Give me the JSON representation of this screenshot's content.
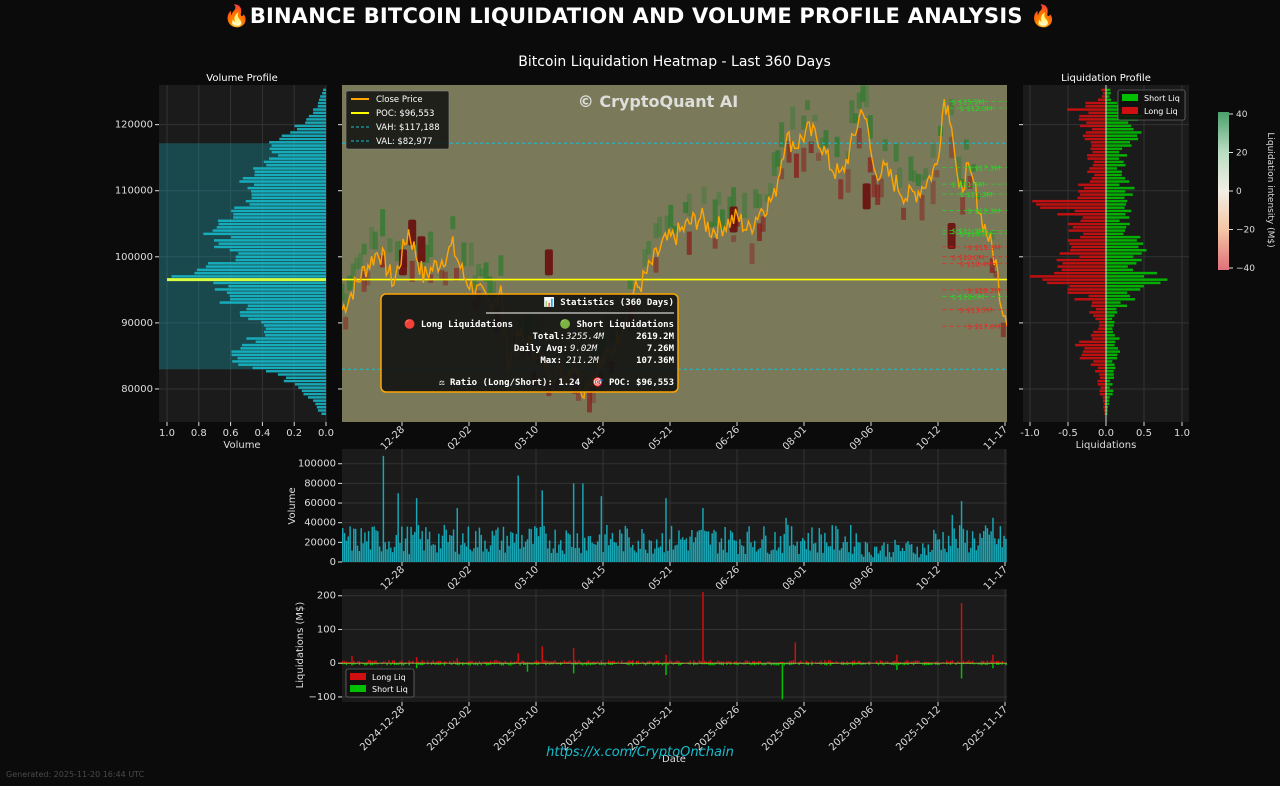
{
  "page": {
    "title": "🔥BINANCE BITCOIN LIQUIDATION AND VOLUME PROFILE ANALYSIS 🔥",
    "subtitle": "Bitcoin Liquidation Heatmap - Last 360 Days",
    "footer_url": "https://x.com/CryptoOnchain",
    "generated": "Generated: 2025-11-20 16:44 UTC",
    "watermark": "© CryptoQuant AI"
  },
  "colors": {
    "background": "#0b0b0b",
    "panel": "#1b1b1b",
    "heatmap_bg": "#7a7a5a",
    "price": "#ffa500",
    "poc": "#ffff00",
    "value_area": "#17becf",
    "volume_bar": "#17becf",
    "short_liq": "#00c000",
    "long_liq": "#d01010"
  },
  "chart_data": [
    {
      "type": "line",
      "name": "heatmap",
      "title": "Bitcoin Liquidation Heatmap - Last 360 Days",
      "dates": [
        "2024-12-28",
        "2025-02-02",
        "2025-03-10",
        "2025-04-15",
        "2025-05-21",
        "2025-06-26",
        "2025-08-01",
        "2025-09-06",
        "2025-10-12",
        "2025-11-17"
      ],
      "ylim": [
        75000,
        126000
      ],
      "yticks": [
        "80000",
        "90000",
        "100000",
        "110000",
        "120000"
      ],
      "price_keypoints": [
        [
          0,
          92000
        ],
        [
          6,
          95000
        ],
        [
          12,
          98000
        ],
        [
          20,
          101000
        ],
        [
          28,
          96000
        ],
        [
          36,
          104000
        ],
        [
          44,
          97000
        ],
        [
          52,
          99000
        ],
        [
          60,
          101500
        ],
        [
          66,
          97000
        ],
        [
          72,
          95000
        ],
        [
          80,
          93000
        ],
        [
          86,
          95000
        ],
        [
          90,
          84000
        ],
        [
          96,
          88000
        ],
        [
          104,
          86000
        ],
        [
          112,
          83000
        ],
        [
          120,
          82000
        ],
        [
          126,
          84000
        ],
        [
          130,
          80000
        ],
        [
          138,
          83000
        ],
        [
          144,
          85000
        ],
        [
          150,
          88000
        ],
        [
          156,
          94000
        ],
        [
          162,
          96000
        ],
        [
          168,
          99000
        ],
        [
          174,
          102000
        ],
        [
          180,
          103000
        ],
        [
          188,
          105000
        ],
        [
          194,
          106000
        ],
        [
          200,
          104000
        ],
        [
          208,
          105000
        ],
        [
          214,
          106000
        ],
        [
          220,
          104000
        ],
        [
          226,
          107000
        ],
        [
          234,
          109000
        ],
        [
          240,
          118000
        ],
        [
          246,
          117000
        ],
        [
          252,
          119000
        ],
        [
          258,
          118000
        ],
        [
          264,
          114000
        ],
        [
          270,
          112000
        ],
        [
          276,
          117000
        ],
        [
          282,
          123000
        ],
        [
          288,
          113000
        ],
        [
          294,
          113000
        ],
        [
          300,
          111000
        ],
        [
          306,
          109000
        ],
        [
          312,
          110000
        ],
        [
          318,
          112000
        ],
        [
          322,
          114000
        ],
        [
          326,
          124000
        ],
        [
          330,
          121000
        ],
        [
          334,
          109000
        ],
        [
          338,
          113000
        ],
        [
          342,
          111000
        ],
        [
          346,
          106000
        ],
        [
          350,
          103000
        ],
        [
          354,
          99000
        ],
        [
          357,
          93000
        ],
        [
          360,
          91000
        ]
      ],
      "poc": 96553,
      "vah": 117188,
      "val": 82977,
      "legend": [
        "Close Price",
        "POC: $96,553",
        "VAH: $117,188",
        "VAL: $82,977"
      ],
      "right_labels": [
        {
          "text": "$ $15.9M",
          "price": 123500,
          "side": "short"
        },
        {
          "text": "$ $12.0M",
          "price": 122500,
          "side": "short"
        },
        {
          "text": "$ $17.3M",
          "price": 113500,
          "side": "short"
        },
        {
          "text": "$ $11.5M",
          "price": 111000,
          "side": "short"
        },
        {
          "text": "$ $11.3M",
          "price": 109500,
          "side": "short"
        },
        {
          "text": "$ $12.3M",
          "price": 107000,
          "side": "short"
        },
        {
          "text": "$ $11.3M",
          "price": 104000,
          "side": "short"
        },
        {
          "text": "$ $10.6M",
          "price": 103500,
          "side": "short"
        },
        {
          "text": "$ $15.3M",
          "price": 101500,
          "side": "long"
        },
        {
          "text": "$ $10.0M",
          "price": 100000,
          "side": "long"
        },
        {
          "text": "$ $10.4M",
          "price": 99000,
          "side": "long"
        },
        {
          "text": "$ $20.2M",
          "price": 95000,
          "side": "long"
        },
        {
          "text": "$ $10.0M",
          "price": 94000,
          "side": "short"
        },
        {
          "text": "$ $13.9M",
          "price": 92000,
          "side": "long"
        },
        {
          "text": "$ $17.6M",
          "price": 89500,
          "side": "long"
        }
      ],
      "statistics": {
        "title": "📊 Statistics (360 Days)",
        "long_title": "🔴 Long Liquidations",
        "short_title": "🟢 Short Liquidations",
        "total_label": "Total:",
        "long_total": "3255.4M",
        "short_total": "2619.2M",
        "daily_label": "Daily Avg:",
        "long_daily": "9.02M",
        "short_daily": "7.26M",
        "max_label": "Max:",
        "long_max": "211.2M",
        "short_max": "107.36M",
        "ratio": "⚖ Ratio (Long/Short): 1.24",
        "poc": "🎯 POC: $96,553"
      }
    },
    {
      "type": "bar",
      "name": "volume_profile",
      "title": "Volume Profile",
      "xlabel": "Volume",
      "xticks": [
        "1.0",
        "0.8",
        "0.6",
        "0.4",
        "0.2",
        "0.0"
      ],
      "price_range": [
        76000,
        125500
      ],
      "bucket_count": 100,
      "profile_keypoints": [
        [
          125,
          0.02
        ],
        [
          123,
          0.05
        ],
        [
          121,
          0.1
        ],
        [
          119,
          0.22
        ],
        [
          118,
          0.3
        ],
        [
          117,
          0.38
        ],
        [
          115,
          0.36
        ],
        [
          113,
          0.45
        ],
        [
          111,
          0.5
        ],
        [
          109,
          0.52
        ],
        [
          107,
          0.6
        ],
        [
          105,
          0.75
        ],
        [
          103,
          0.7
        ],
        [
          101,
          0.65
        ],
        [
          99,
          0.68
        ],
        [
          98,
          0.82
        ],
        [
          97,
          0.95
        ],
        [
          96.5,
          1.0
        ],
        [
          96,
          0.8
        ],
        [
          95,
          0.72
        ],
        [
          93,
          0.62
        ],
        [
          91,
          0.5
        ],
        [
          89,
          0.4
        ],
        [
          87,
          0.5
        ],
        [
          85,
          0.62
        ],
        [
          84,
          0.7
        ],
        [
          83,
          0.55
        ],
        [
          82,
          0.3
        ],
        [
          80,
          0.2
        ],
        [
          78,
          0.1
        ],
        [
          76,
          0.03
        ]
      ]
    },
    {
      "type": "bar",
      "name": "liquidation_profile",
      "title": "Liquidation Profile",
      "xlabel": "Liquidations",
      "xticks": [
        "-1.0",
        "-0.5",
        "0.0",
        "0.5",
        "1.0"
      ],
      "legend": [
        "Short Liq",
        "Long Liq"
      ],
      "colorbar_label": "Liquidation intensity (M$)",
      "colorbar_ticks": [
        "40",
        "20",
        "0",
        "−20",
        "−40"
      ],
      "short_keypoints": [
        [
          124,
          0.05
        ],
        [
          121,
          0.4
        ],
        [
          119,
          0.55
        ],
        [
          117,
          0.3
        ],
        [
          114,
          0.25
        ],
        [
          112,
          0.2
        ],
        [
          110,
          0.3
        ],
        [
          108,
          0.32
        ],
        [
          105,
          0.25
        ],
        [
          103,
          0.4
        ],
        [
          101,
          0.45
        ],
        [
          99,
          0.38
        ],
        [
          97,
          0.55
        ],
        [
          96.5,
          0.9
        ],
        [
          95,
          0.5
        ],
        [
          93,
          0.3
        ],
        [
          91,
          0.15
        ],
        [
          89,
          0.1
        ],
        [
          87,
          0.2
        ],
        [
          85,
          0.15
        ],
        [
          83,
          0.1
        ],
        [
          80,
          0.08
        ],
        [
          78,
          0.06
        ],
        [
          76,
          0.02
        ]
      ],
      "long_keypoints": [
        [
          124,
          0.05
        ],
        [
          122,
          0.4
        ],
        [
          120,
          0.3
        ],
        [
          118,
          0.25
        ],
        [
          115,
          0.2
        ],
        [
          112,
          0.25
        ],
        [
          109,
          0.35
        ],
        [
          108,
          0.95
        ],
        [
          106,
          0.5
        ],
        [
          104,
          0.4
        ],
        [
          102,
          0.45
        ],
        [
          100,
          0.5
        ],
        [
          98,
          0.6
        ],
        [
          97,
          0.85
        ],
        [
          95,
          0.45
        ],
        [
          93,
          0.3
        ],
        [
          91,
          0.15
        ],
        [
          89,
          0.1
        ],
        [
          87,
          0.3
        ],
        [
          85,
          0.35
        ],
        [
          83,
          0.15
        ],
        [
          80,
          0.1
        ],
        [
          78,
          0.05
        ],
        [
          76,
          0.02
        ]
      ]
    },
    {
      "type": "bar",
      "name": "daily_volume",
      "ylabel": "Volume",
      "ylim": [
        0,
        115000
      ],
      "yticks": [
        "0",
        "20000",
        "40000",
        "60000",
        "80000",
        "100000"
      ],
      "spikes": [
        [
          22,
          108000
        ],
        [
          30,
          70000
        ],
        [
          40,
          65000
        ],
        [
          62,
          55000
        ],
        [
          95,
          88000
        ],
        [
          108,
          73000
        ],
        [
          125,
          80000
        ],
        [
          130,
          80000
        ],
        [
          140,
          67000
        ],
        [
          175,
          65000
        ],
        [
          195,
          55000
        ],
        [
          240,
          45000
        ],
        [
          330,
          48000
        ],
        [
          335,
          62000
        ],
        [
          352,
          45000
        ]
      ]
    },
    {
      "type": "bar",
      "name": "daily_liquidations",
      "ylabel": "Liquidations (M$)",
      "xlabel": "Date",
      "ylim": [
        -115,
        220
      ],
      "yticks": [
        "−100",
        "0",
        "100",
        "200"
      ],
      "legend": [
        "Long Liq",
        "Short Liq"
      ],
      "long_spikes": [
        [
          5,
          22
        ],
        [
          40,
          18
        ],
        [
          62,
          15
        ],
        [
          95,
          30
        ],
        [
          108,
          50
        ],
        [
          125,
          45
        ],
        [
          175,
          25
        ],
        [
          195,
          211
        ],
        [
          245,
          62
        ],
        [
          300,
          25
        ],
        [
          335,
          178
        ],
        [
          352,
          25
        ]
      ],
      "short_spikes": [
        [
          40,
          -15
        ],
        [
          100,
          -25
        ],
        [
          125,
          -30
        ],
        [
          175,
          -35
        ],
        [
          238,
          -107
        ],
        [
          300,
          -20
        ],
        [
          335,
          -45
        ],
        [
          352,
          -15
        ]
      ]
    }
  ]
}
